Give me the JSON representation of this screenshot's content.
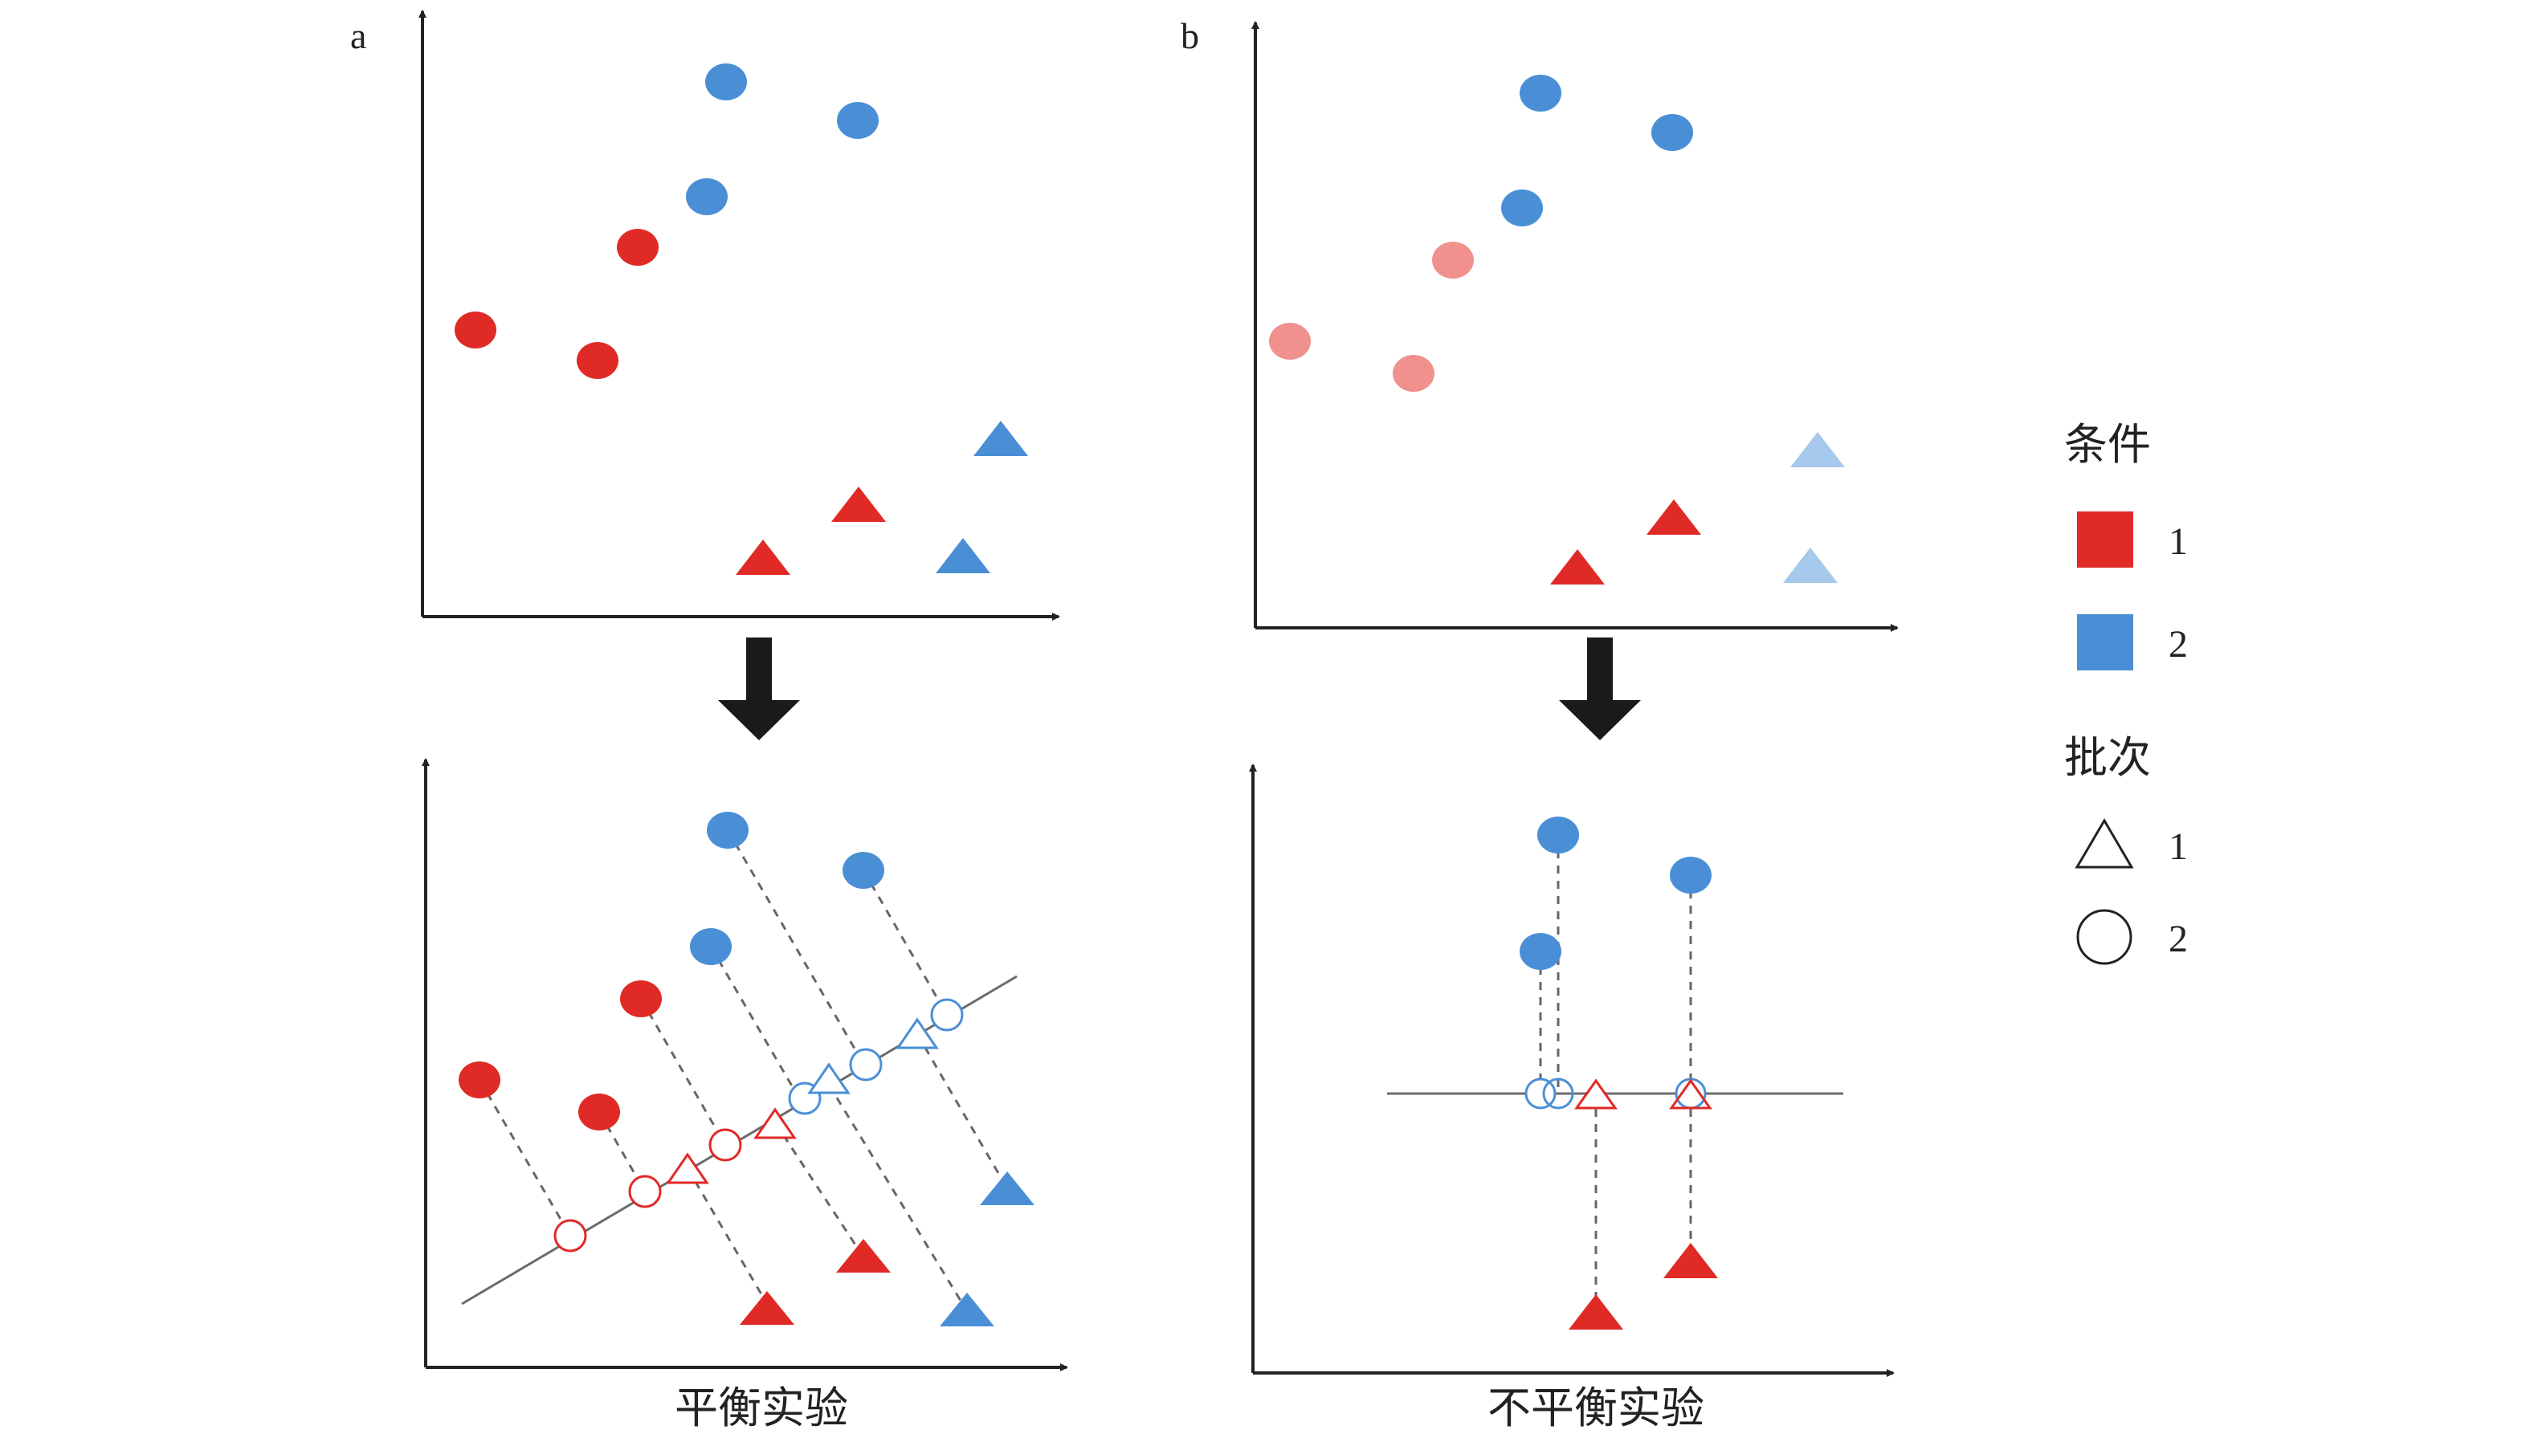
{
  "panels": {
    "a": {
      "letter": "a",
      "caption": "平衡实验"
    },
    "b": {
      "letter": "b",
      "caption": "不平衡实验"
    }
  },
  "legend": {
    "condition": {
      "title": "条件",
      "items": [
        {
          "label": "1",
          "color": "#e02a26"
        },
        {
          "label": "2",
          "color": "#4a8fd6"
        }
      ]
    },
    "batch": {
      "title": "批次",
      "items": [
        {
          "label": "1",
          "shape": "triangle-outline-icon"
        },
        {
          "label": "2",
          "shape": "circle-outline-icon"
        }
      ]
    }
  },
  "colors": {
    "red": "#e02a26",
    "blue": "#4a8fd6",
    "red_faded": "#f0918e",
    "blue_faded": "#a6c9ec",
    "axis": "#222222",
    "arrow": "#1a1a1a",
    "line": "#6b6b6b"
  }
}
